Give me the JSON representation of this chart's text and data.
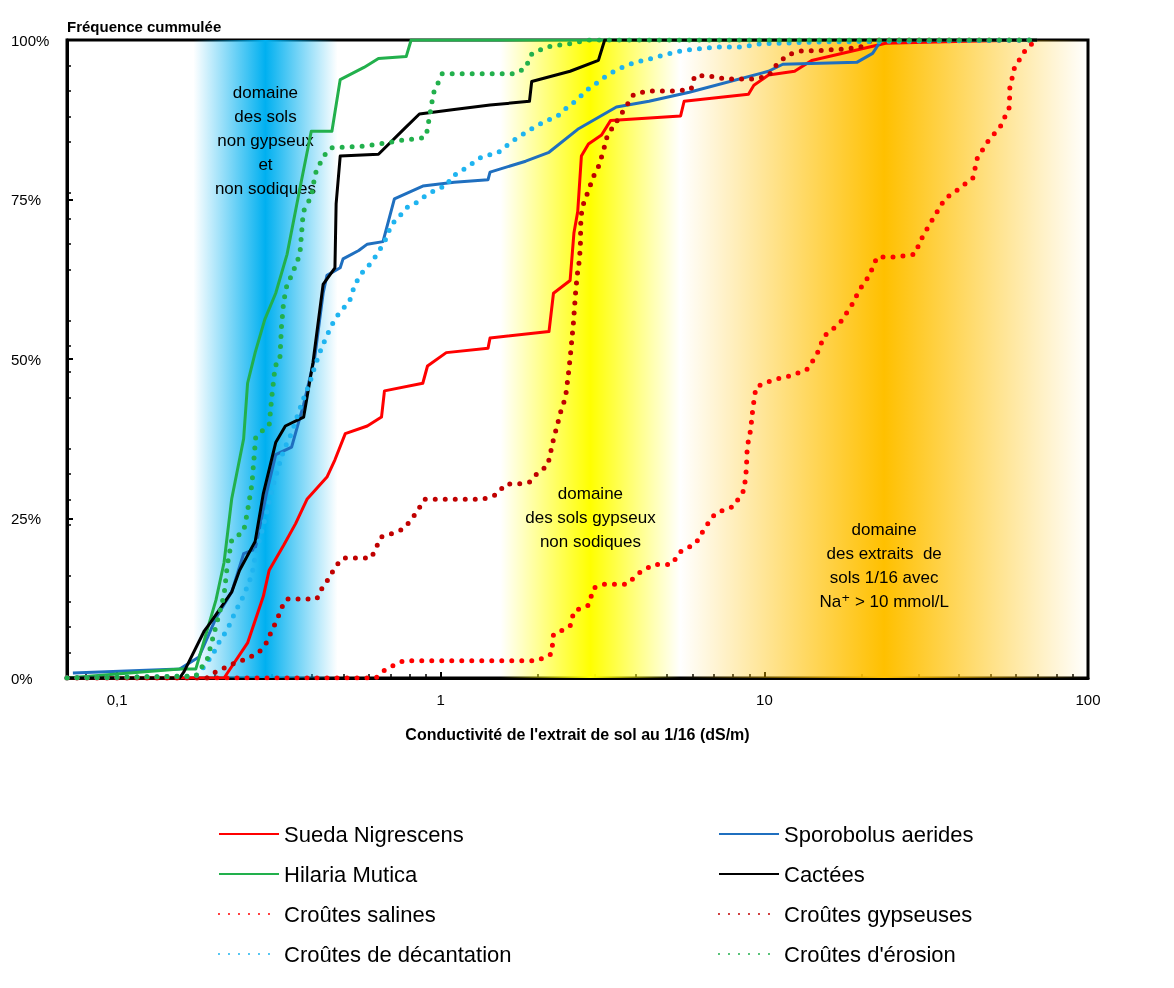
{
  "chart_data": {
    "type": "line",
    "xlabel": "Conductivité de l'extrait de sol au 1/16 (dS/m)",
    "ylabel": "Fréquence cummulée",
    "log": "x",
    "xlim": [
      0.07,
      100
    ],
    "xticks": [
      {
        "value": 0.1,
        "label": "0,1"
      },
      1,
      10,
      100
    ],
    "ylim": [
      0,
      100
    ],
    "yticks": [
      {
        "value": 0,
        "label": "0%"
      },
      {
        "value": 25,
        "label": "25%"
      },
      {
        "value": 50,
        "label": "50%"
      },
      {
        "value": 75,
        "label": "75%"
      },
      {
        "value": 100,
        "label": "100%"
      }
    ],
    "grid": false,
    "legend": "bottom",
    "marker": "none",
    "bands": [
      {
        "axis": "x",
        "from": 0.172,
        "to": 0.48,
        "color": "#00b0f0",
        "label": "domaine\ndes sols\nnon gypseux\net\nnon sodiques"
      },
      {
        "axis": "x",
        "from": 1.53,
        "to": 5.5,
        "color": "#ffff00",
        "label": "domaine\ndes sols gypseux\nnon sodiques"
      },
      {
        "axis": "x",
        "from": 5.5,
        "to": 100,
        "color": "#ffc000",
        "label": "domaine\ndes extraits  de\nsols 1/16 avec\nNa⁺ > 10 mmol/L"
      }
    ],
    "series": [
      {
        "name": "Sueda Nigrescens",
        "color": "#ff0000",
        "line_style": "solid",
        "x": [
          0.07,
          0.214,
          0.253,
          0.283,
          0.295,
          0.327,
          0.356,
          0.386,
          0.445,
          0.471,
          0.507,
          0.593,
          0.656,
          0.67,
          0.88,
          0.91,
          1.04,
          1.4,
          1.42,
          2.16,
          2.23,
          2.51,
          2.58,
          2.65,
          2.72,
          2.86,
          3.14,
          3.35,
          5.51,
          5.65,
          8.93,
          9.28,
          10.3,
          12.4,
          14,
          23.7,
          41.9,
          69.6
        ],
        "values": [
          0,
          0,
          5.5,
          12.8,
          16.9,
          20.8,
          24.2,
          28,
          31.5,
          34.2,
          38.3,
          39.5,
          40.9,
          45,
          46.2,
          48.9,
          51,
          51.7,
          53.3,
          54.3,
          60.3,
          62.3,
          69.8,
          73.1,
          81.8,
          83.7,
          85.1,
          87.4,
          88.1,
          90.4,
          91.5,
          92.9,
          94.5,
          95.1,
          96.8,
          99.5,
          99.8,
          100
        ]
      },
      {
        "name": "Sporobolus aerides",
        "color": "#1f6fbf",
        "line_style": "solid",
        "x": [
          0.073,
          0.156,
          0.179,
          0.202,
          0.226,
          0.246,
          0.267,
          0.291,
          0.309,
          0.346,
          0.377,
          0.408,
          0.433,
          0.445,
          0.489,
          0.499,
          0.558,
          0.593,
          0.663,
          0.719,
          0.88,
          1.1,
          1.4,
          1.42,
          1.83,
          2.16,
          2.65,
          3.49,
          4.4,
          5.86,
          10.3,
          11.4,
          19.3,
          21.6,
          23,
          69.6
        ],
        "values": [
          0.8,
          1.4,
          3.3,
          9.4,
          13.5,
          19.5,
          20.2,
          29.5,
          35,
          36.2,
          42.9,
          50.3,
          60.3,
          63.1,
          64.3,
          65.7,
          67,
          68,
          68.4,
          75.1,
          77.1,
          77.7,
          78.1,
          79.3,
          81,
          82.4,
          86,
          89.5,
          90.4,
          91.8,
          95.1,
          96.2,
          96.5,
          97.9,
          100,
          100
        ]
      },
      {
        "name": "Hilaria Mutica",
        "color": "#22b04c",
        "line_style": "solid",
        "x": [
          0.07,
          0.156,
          0.175,
          0.202,
          0.214,
          0.226,
          0.246,
          0.253,
          0.267,
          0.286,
          0.309,
          0.335,
          0.366,
          0.398,
          0.461,
          0.489,
          0.579,
          0.642,
          0.782,
          0.81,
          69.6
        ],
        "values": [
          0,
          1.4,
          1.4,
          12.2,
          18.1,
          28.1,
          37.5,
          46.2,
          51,
          56.2,
          60.3,
          66.4,
          76.4,
          85.7,
          85.7,
          93.8,
          95.7,
          97.1,
          97.4,
          100,
          100
        ]
      },
      {
        "name": "Cactées",
        "color": "#000000",
        "line_style": "solid",
        "x": [
          0.07,
          0.156,
          0.161,
          0.186,
          0.195,
          0.226,
          0.239,
          0.267,
          0.283,
          0.309,
          0.331,
          0.377,
          0.403,
          0.433,
          0.471,
          0.475,
          0.489,
          0.642,
          0.768,
          0.859,
          1.1,
          1.42,
          1.88,
          1.91,
          2.51,
          3.07,
          3.21,
          69.6
        ],
        "values": [
          0,
          0,
          1,
          7.4,
          8.8,
          13.5,
          16.9,
          21.4,
          28.9,
          36.9,
          39.5,
          40.9,
          49.5,
          61.7,
          64.3,
          74.3,
          81.8,
          82.1,
          86,
          88.4,
          89.1,
          89.8,
          90.4,
          93.5,
          95.1,
          96.8,
          100,
          100
        ]
      },
      {
        "name": "Croûtes salines",
        "color": "#ff0000",
        "line_style": "dotted",
        "x": [
          0.07,
          0.63,
          0.677,
          0.768,
          0.85,
          1.99,
          2.2,
          2.23,
          2.51,
          2.58,
          2.86,
          2.97,
          3.21,
          3.77,
          4.08,
          4.54,
          5.17,
          5.51,
          6.14,
          6.56,
          7.05,
          8.03,
          8.66,
          8.8,
          8.85,
          9.07,
          9.21,
          9.42,
          10.6,
          11.9,
          13.5,
          14.5,
          15.3,
          17.1,
          18.6,
          19.7,
          21.1,
          22.3,
          25.6,
          29.1,
          30.9,
          33.2,
          36.1,
          40,
          44.1,
          45.5,
          48.9,
          53.7,
          57.2,
          57.3,
          59.3,
          64.2,
          69.1
        ],
        "values": [
          0,
          0,
          1.4,
          2.7,
          2.7,
          2.7,
          3.8,
          6.8,
          8.1,
          10.5,
          11.4,
          14.1,
          14.7,
          14.7,
          16.4,
          17.8,
          17.8,
          19.8,
          21.1,
          23.6,
          25.8,
          26.9,
          29.5,
          32.8,
          36.2,
          38.9,
          42.2,
          45.6,
          46.7,
          47.3,
          48.3,
          50.6,
          53.6,
          55.6,
          58.4,
          60.9,
          63.1,
          66,
          66,
          66.4,
          69.3,
          72,
          75.1,
          76.7,
          78.4,
          81.5,
          84,
          86.5,
          89.5,
          92.4,
          95.7,
          98.5,
          100
        ]
      },
      {
        "name": "Croûtes gypseuses",
        "color": "#c00000",
        "line_style": "dotted",
        "x": [
          0.07,
          0.19,
          0.201,
          0.232,
          0.252,
          0.275,
          0.291,
          0.3,
          0.312,
          0.322,
          0.335,
          0.376,
          0.414,
          0.433,
          0.453,
          0.471,
          0.499,
          0.55,
          0.61,
          0.654,
          0.711,
          0.763,
          0.809,
          0.857,
          0.891,
          0.995,
          1.1,
          1.23,
          1.35,
          1.48,
          1.59,
          1.73,
          1.88,
          1.99,
          2.14,
          2.23,
          2.29,
          2.35,
          2.43,
          2.49,
          2.52,
          2.57,
          2.61,
          2.64,
          2.68,
          2.7,
          2.71,
          2.76,
          2.84,
          2.97,
          3.08,
          3.18,
          3.27,
          3.5,
          3.94,
          4.33,
          4.87,
          5.36,
          5.94,
          6.09,
          6.71,
          7.54,
          8.46,
          9.44,
          10.3,
          10.9,
          11.8,
          13.1,
          14.6,
          16.2,
          17.8,
          19.8,
          21.5,
          69.6
        ],
        "values": [
          0,
          0,
          0.9,
          2.4,
          3,
          4.1,
          5.7,
          7.4,
          9.1,
          11,
          12.4,
          12.4,
          12.4,
          14.4,
          15.7,
          17.4,
          18.8,
          18.8,
          18.8,
          22.1,
          22.7,
          23.3,
          24.7,
          26.6,
          28,
          28,
          28,
          28,
          28,
          28.7,
          30.4,
          30.4,
          30.7,
          32.1,
          33.3,
          37.4,
          39.6,
          41.8,
          44,
          48.4,
          51,
          55.7,
          60.4,
          63.1,
          65.4,
          67.6,
          72.3,
          74.3,
          76,
          78.7,
          80.3,
          82.6,
          85,
          87.3,
          91.4,
          92,
          92,
          92,
          92.3,
          94.4,
          94.4,
          93.9,
          93.9,
          93.9,
          94.4,
          96.1,
          97.7,
          98.3,
          98.3,
          98.5,
          98.6,
          98.9,
          100,
          100
        ]
      },
      {
        "name": "Croûtes de décantation",
        "color": "#1fb4f0",
        "line_style": "dotted",
        "x": [
          0.07,
          0.175,
          0.185,
          0.197,
          0.207,
          0.219,
          0.232,
          0.246,
          0.261,
          0.268,
          0.28,
          0.291,
          0.304,
          0.318,
          0.327,
          0.346,
          0.36,
          0.376,
          0.394,
          0.409,
          0.428,
          0.445,
          0.471,
          0.493,
          0.522,
          0.543,
          0.575,
          0.61,
          0.646,
          0.68,
          0.702,
          0.744,
          0.783,
          0.83,
          0.88,
          0.956,
          1.05,
          1.07,
          1.2,
          1.34,
          1.5,
          1.68,
          1.88,
          2.11,
          2.29,
          2.49,
          2.64,
          2.8,
          3.04,
          3.31,
          3.6,
          3.94,
          4.39,
          4.93,
          5.53,
          6.17,
          7.11,
          8.46,
          9.75,
          15,
          69.6
        ],
        "values": [
          0,
          0.3,
          1.7,
          3.6,
          5.7,
          7.6,
          10.4,
          12.9,
          16.2,
          19.5,
          23,
          26.3,
          30.4,
          33.7,
          35.7,
          38.4,
          41,
          43.7,
          46.3,
          49,
          51.7,
          53.7,
          56.3,
          57.6,
          59,
          61.7,
          63.7,
          65.1,
          67,
          69,
          71,
          72.3,
          73.7,
          74.3,
          75.3,
          76.4,
          77.3,
          78.4,
          80,
          81.7,
          82.3,
          84.3,
          85.9,
          87.3,
          88,
          89.7,
          90.6,
          92,
          93.3,
          94.7,
          95.6,
          96.4,
          97,
          97.7,
          98.3,
          98.6,
          98.9,
          98.9,
          99.4,
          99.7,
          100
        ]
      },
      {
        "name": "Croûtes d'érosion",
        "color": "#22b04c",
        "line_style": "dotted",
        "x": [
          0.07,
          0.175,
          0.19,
          0.201,
          0.214,
          0.219,
          0.226,
          0.246,
          0.252,
          0.261,
          0.268,
          0.284,
          0.295,
          0.3,
          0.308,
          0.318,
          0.322,
          0.327,
          0.335,
          0.346,
          0.367,
          0.376,
          0.399,
          0.409,
          0.433,
          0.459,
          0.59,
          0.763,
          0.891,
          0.902,
          0.95,
          1.01,
          1.68,
          1.83,
          1.9,
          2.11,
          2.49,
          2.87,
          69.6
        ],
        "values": [
          0,
          0.3,
          3,
          7.7,
          13,
          17.7,
          21.6,
          23,
          25.7,
          30.4,
          37.7,
          39,
          39.6,
          43.7,
          49,
          49.6,
          55.1,
          59,
          61.7,
          63.1,
          66.4,
          73.1,
          75.6,
          79,
          81.7,
          83.1,
          83.4,
          84.3,
          84.7,
          85,
          91.7,
          94.7,
          94.7,
          95.6,
          97.7,
          98.9,
          99.4,
          100,
          100
        ]
      }
    ]
  }
}
